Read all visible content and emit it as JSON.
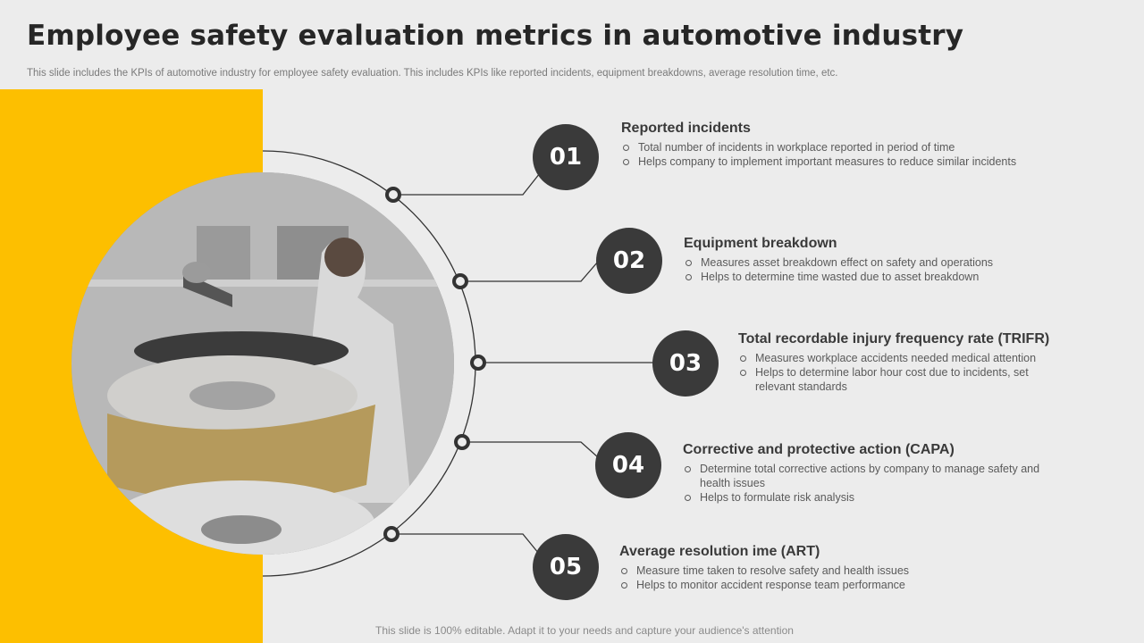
{
  "header": {
    "title": "Employee safety evaluation metrics in automotive industry",
    "subtitle": "This slide includes the KPIs of automotive industry for employee safety evaluation. This includes KPIs like reported incidents, equipment breakdowns, average resolution time, etc."
  },
  "colors": {
    "accent_yellow": "#fdbf00",
    "badge": "#3a3a3a",
    "background": "#ececec"
  },
  "items": [
    {
      "number": "01",
      "title": "Reported incidents",
      "bullets": [
        "Total number of incidents in workplace reported in period of time",
        "Helps company to implement important measures to reduce similar incidents"
      ]
    },
    {
      "number": "02",
      "title": "Equipment breakdown",
      "bullets": [
        "Measures asset breakdown effect on safety and operations",
        "Helps to determine time wasted due to asset breakdown"
      ]
    },
    {
      "number": "03",
      "title": "Total recordable injury frequency rate (TRIFR)",
      "bullets": [
        "Measures workplace accidents needed medical attention",
        "Helps to determine labor hour cost due to incidents, set relevant standards"
      ]
    },
    {
      "number": "04",
      "title": "Corrective and protective action (CAPA)",
      "bullets": [
        "Determine total corrective actions by company to manage safety and health issues",
        "Helps to formulate risk analysis"
      ]
    },
    {
      "number": "05",
      "title": "Average resolution ime (ART)",
      "bullets": [
        "Measure time taken to resolve safety and health issues",
        "Helps to monitor accident response team performance"
      ]
    }
  ],
  "footer": {
    "text": "This slide is 100% editable. Adapt it to your needs and capture your audience's attention"
  }
}
